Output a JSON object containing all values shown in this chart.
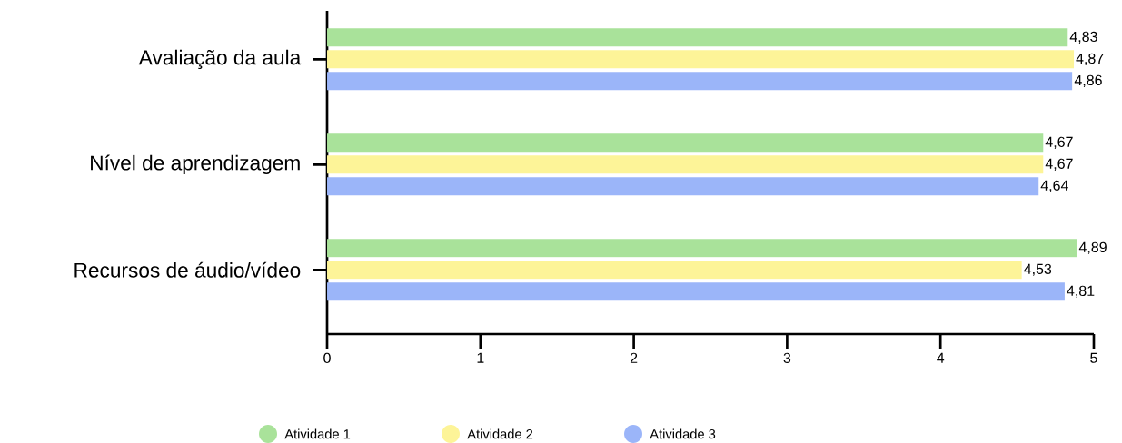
{
  "chart_data": {
    "type": "bar",
    "orientation": "horizontal",
    "categories": [
      "Avaliação da aula",
      "Nível de aprendizagem",
      "Recursos de áudio/vídeo"
    ],
    "series": [
      {
        "name": "Atividade 1",
        "color": "#a9e29a",
        "values": [
          4.83,
          4.67,
          4.89
        ],
        "value_labels": [
          "4,83",
          "4,67",
          "4,89"
        ]
      },
      {
        "name": "Atividade 2",
        "color": "#fdf498",
        "values": [
          4.87,
          4.67,
          4.53
        ],
        "value_labels": [
          "4,87",
          "4,67",
          "4,53"
        ]
      },
      {
        "name": "Atividade 3",
        "color": "#9bb5f9",
        "values": [
          4.86,
          4.64,
          4.81
        ],
        "value_labels": [
          "4,86",
          "4,64",
          "4,81"
        ]
      }
    ],
    "xlim": [
      0,
      5
    ],
    "xticks": [
      0,
      1,
      2,
      3,
      4,
      5
    ],
    "legend": "bottom",
    "grid": false
  }
}
